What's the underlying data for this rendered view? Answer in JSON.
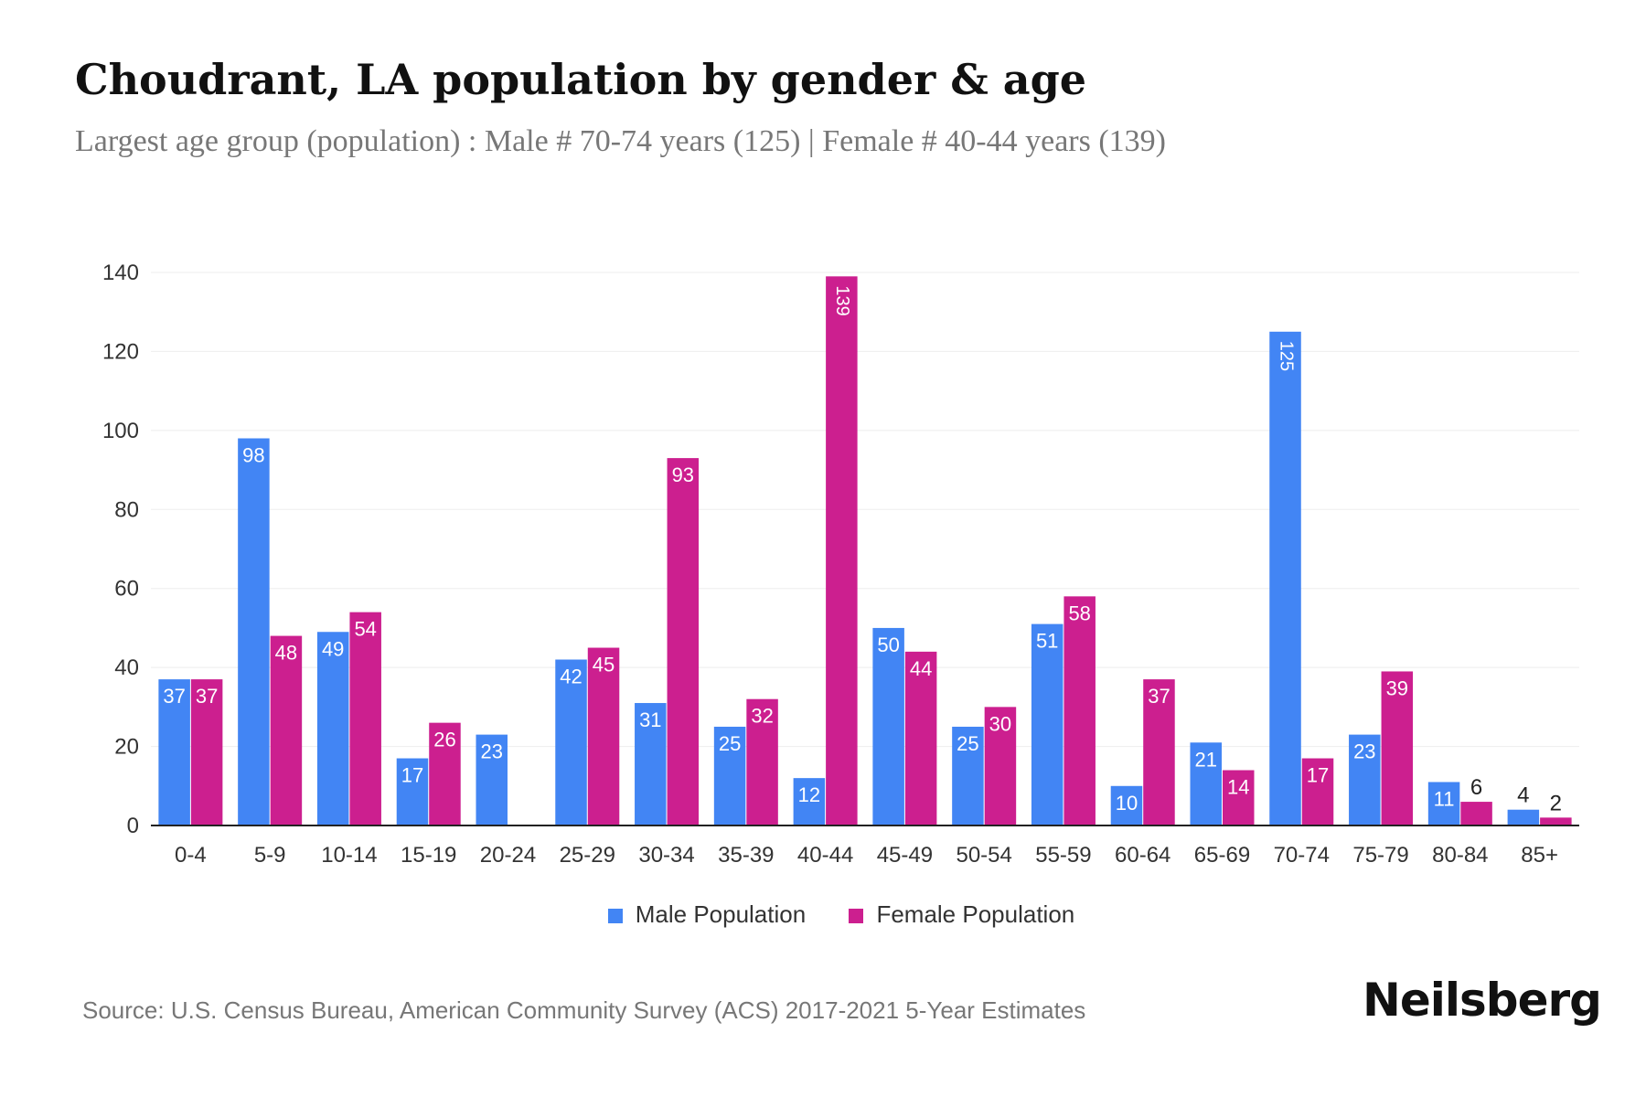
{
  "title": "Choudrant, LA population by gender & age",
  "subtitle": "Largest age group (population) : Male # 70-74 years (125) | Female # 40-44 years (139)",
  "source": "Source: U.S. Census Bureau, American Community Survey (ACS) 2017-2021 5-Year Estimates",
  "logo": "Neilsberg",
  "colors": {
    "male": "#4285f4",
    "female": "#cc1f8f"
  },
  "chart_data": {
    "type": "bar",
    "title": "Choudrant, LA population by gender & age",
    "categories": [
      "0-4",
      "5-9",
      "10-14",
      "15-19",
      "20-24",
      "25-29",
      "30-34",
      "35-39",
      "40-44",
      "45-49",
      "50-54",
      "55-59",
      "60-64",
      "65-69",
      "70-74",
      "75-79",
      "80-84",
      "85+"
    ],
    "series": [
      {
        "name": "Male Population",
        "values": [
          37,
          98,
          49,
          17,
          23,
          42,
          31,
          25,
          12,
          50,
          25,
          51,
          10,
          21,
          125,
          23,
          11,
          4
        ]
      },
      {
        "name": "Female Population",
        "values": [
          37,
          48,
          54,
          26,
          0,
          45,
          93,
          32,
          139,
          44,
          30,
          58,
          37,
          14,
          17,
          39,
          6,
          2
        ]
      }
    ],
    "ylim": [
      0,
      140
    ],
    "yticks": [
      0,
      20,
      40,
      60,
      80,
      100,
      120,
      140
    ],
    "grid": true,
    "legend": "bottom"
  }
}
